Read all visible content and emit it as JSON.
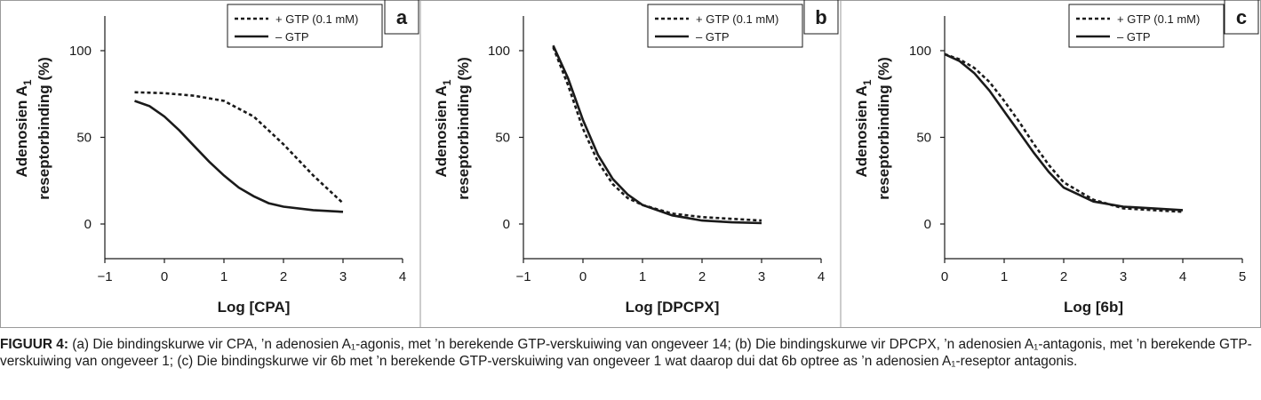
{
  "legend": {
    "gtp_label": "+ GTP (0.1 mM)",
    "nogtp_label": "– GTP"
  },
  "ylabel": {
    "line1": "Adenosien A",
    "subscript": "1",
    "line2": "reseptorbinding (%)"
  },
  "caption": {
    "label": "FIGUUR 4:",
    "text": " (a) Die bindingskurwe vir CPA, ’n adenosien A₁-agonis, met ’n berekende GTP-verskuiwing van ongeveer 14; (b) Die bindingskurwe vir DPCPX, ’n adenosien A₁-antagonis, met ’n berekende GTP-verskuiwing van ongeveer 1; (c) Die bindingskurwe vir 6b met ’n berekende GTP-verskuiwing van ongeveer 1 wat daarop dui dat 6b optree as ’n adenosien A₁-reseptor antagonis."
  },
  "chart_data": [
    {
      "type": "line",
      "panel": "a",
      "xlabel": "Log [CPA]",
      "xlim": [
        -1,
        4
      ],
      "xticks": [
        -1,
        0,
        1,
        2,
        3,
        4
      ],
      "ylim": [
        -20,
        120
      ],
      "yticks": [
        0,
        50,
        100
      ],
      "grid": false,
      "legend_position": "top-right",
      "series": [
        {
          "name": "+ GTP (0.1 mM)",
          "style": "dashed",
          "x": [
            -0.5,
            0,
            0.5,
            1,
            1.5,
            2,
            2.5,
            3
          ],
          "y": [
            76,
            75.5,
            74,
            71,
            62,
            46,
            28,
            12
          ]
        },
        {
          "name": "– GTP",
          "style": "solid",
          "x": [
            -0.5,
            -0.25,
            0,
            0.25,
            0.5,
            0.75,
            1,
            1.25,
            1.5,
            1.75,
            2,
            2.5,
            3
          ],
          "y": [
            71,
            68,
            62,
            54,
            45,
            36,
            28,
            21,
            16,
            12,
            10,
            8,
            7
          ]
        }
      ]
    },
    {
      "type": "line",
      "panel": "b",
      "xlabel": "Log [DPCPX]",
      "xlim": [
        -1,
        4
      ],
      "xticks": [
        -1,
        0,
        1,
        2,
        3,
        4
      ],
      "ylim": [
        -20,
        120
      ],
      "yticks": [
        0,
        50,
        100
      ],
      "grid": false,
      "legend_position": "top-right",
      "series": [
        {
          "name": "+ GTP (0.1 mM)",
          "style": "dashed",
          "x": [
            -0.5,
            -0.25,
            0,
            0.25,
            0.5,
            0.75,
            1,
            1.5,
            2,
            2.5,
            3
          ],
          "y": [
            102,
            80,
            55,
            36,
            23,
            15,
            11,
            6,
            4,
            3,
            2
          ]
        },
        {
          "name": "– GTP",
          "style": "solid",
          "x": [
            -0.5,
            -0.25,
            0,
            0.25,
            0.5,
            0.75,
            1,
            1.5,
            2,
            2.5,
            3
          ],
          "y": [
            103,
            84,
            60,
            40,
            26,
            17,
            11,
            5,
            2,
            1,
            0.5
          ]
        }
      ]
    },
    {
      "type": "line",
      "panel": "c",
      "xlabel": "Log [6b]",
      "xlim": [
        0,
        5
      ],
      "xticks": [
        0,
        1,
        2,
        3,
        4,
        5
      ],
      "ylim": [
        -20,
        120
      ],
      "yticks": [
        0,
        50,
        100
      ],
      "grid": false,
      "legend_position": "top-right",
      "series": [
        {
          "name": "+ GTP (0.1 mM)",
          "style": "dashed",
          "x": [
            0,
            0.25,
            0.5,
            0.75,
            1,
            1.25,
            1.5,
            1.75,
            2,
            2.5,
            3,
            3.5,
            4
          ],
          "y": [
            98,
            95,
            90,
            82,
            71,
            59,
            46,
            34,
            24,
            14,
            9,
            8,
            7
          ]
        },
        {
          "name": "– GTP",
          "style": "solid",
          "x": [
            0,
            0.25,
            0.5,
            0.75,
            1,
            1.25,
            1.5,
            1.75,
            2,
            2.5,
            3,
            3.5,
            4
          ],
          "y": [
            98,
            94,
            87,
            77,
            65,
            53,
            41,
            30,
            21,
            13,
            10,
            9,
            8
          ]
        }
      ]
    }
  ]
}
